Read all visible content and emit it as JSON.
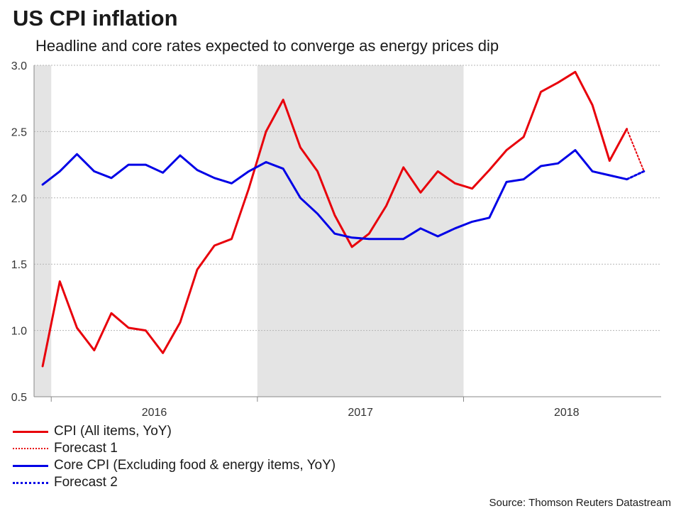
{
  "title": "US CPI inflation",
  "subtitle": "Headline and core rates expected to converge as energy prices dip",
  "source": "Source: Thomson Reuters Datastream",
  "colors": {
    "cpi": "#e8000b",
    "core": "#0000e6",
    "shade": "#e4e4e4",
    "grid": "#b5b5b5"
  },
  "legend": [
    {
      "label": "CPI (All items, YoY)",
      "style": "solid-red"
    },
    {
      "label": "Forecast 1",
      "style": "dot-red"
    },
    {
      "label": "Core CPI (Excluding food & energy items, YoY)",
      "style": "solid-blue"
    },
    {
      "label": "Forecast 2",
      "style": "dot-blue"
    }
  ],
  "chart_data": {
    "type": "line",
    "title": "US CPI inflation",
    "ylim": [
      0.5,
      3.0
    ],
    "yticks": [
      "3.0",
      "2.5",
      "2.0",
      "1.5",
      "1.0",
      "0.5"
    ],
    "ytick_values": [
      3.0,
      2.5,
      2.0,
      1.5,
      1.0,
      0.5
    ],
    "year_labels": [
      {
        "label": "2016",
        "month_index": 6.5
      },
      {
        "label": "2017",
        "month_index": 18.5
      },
      {
        "label": "2018",
        "month_index": 30.5
      }
    ],
    "x_range_months": [
      -0.5,
      36.0
    ],
    "x_start": "Dec 2015 = month index 0",
    "shaded_periods_months": [
      [
        -0.5,
        0.5
      ],
      [
        12.5,
        24.5
      ]
    ],
    "series": [
      {
        "name": "CPI (All items, YoY)",
        "style": "solid",
        "color": "#e8000b",
        "values": [
          0.73,
          1.37,
          1.02,
          0.85,
          1.13,
          1.02,
          1.0,
          0.83,
          1.06,
          1.46,
          1.64,
          1.69,
          2.07,
          2.5,
          2.74,
          2.38,
          2.2,
          1.87,
          1.63,
          1.73,
          1.94,
          2.23,
          2.04,
          2.2,
          2.11,
          2.07,
          2.21,
          2.36,
          2.46,
          2.8,
          2.87,
          2.95,
          2.7,
          2.28,
          2.52
        ]
      },
      {
        "name": "Forecast 1",
        "style": "dotted",
        "color": "#e8000b",
        "start_index": 34,
        "values": [
          2.52,
          2.2
        ]
      },
      {
        "name": "Core CPI (Excluding food & energy items, YoY)",
        "style": "solid",
        "color": "#0000e6",
        "values": [
          2.1,
          2.2,
          2.33,
          2.2,
          2.15,
          2.25,
          2.25,
          2.19,
          2.32,
          2.21,
          2.15,
          2.11,
          2.2,
          2.27,
          2.22,
          2.0,
          1.88,
          1.73,
          1.7,
          1.69,
          1.69,
          1.69,
          1.77,
          1.71,
          1.77,
          1.82,
          1.85,
          2.12,
          2.14,
          2.24,
          2.26,
          2.36,
          2.2,
          2.17,
          2.14
        ]
      },
      {
        "name": "Forecast 2",
        "style": "dotted",
        "color": "#0000e6",
        "start_index": 34,
        "values": [
          2.14,
          2.2
        ]
      }
    ]
  }
}
